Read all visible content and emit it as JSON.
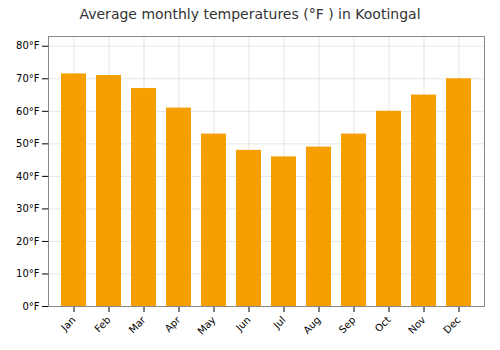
{
  "chart_data": {
    "type": "bar",
    "title": "Average monthly temperatures (°F ) in Kootingal",
    "categories": [
      "Jan",
      "Feb",
      "Mar",
      "Apr",
      "May",
      "Jun",
      "Jul",
      "Aug",
      "Sep",
      "Oct",
      "Nov",
      "Dec"
    ],
    "values": [
      71.5,
      71.0,
      67.0,
      61.0,
      53.0,
      48.0,
      46.0,
      49.0,
      53.0,
      60.0,
      65.0,
      70.0
    ],
    "color": "#F5A000",
    "ylim": [
      0,
      83
    ],
    "yticks": [
      {
        "value": 0,
        "label": "0°F"
      },
      {
        "value": 10,
        "label": "10°F"
      },
      {
        "value": 20,
        "label": "20°F"
      },
      {
        "value": 30,
        "label": "30°F"
      },
      {
        "value": 40,
        "label": "40°F"
      },
      {
        "value": 50,
        "label": "50°F"
      },
      {
        "value": 60,
        "label": "60°F"
      },
      {
        "value": 70,
        "label": "70°F"
      },
      {
        "value": 80,
        "label": "80°F"
      }
    ],
    "grid": true
  }
}
